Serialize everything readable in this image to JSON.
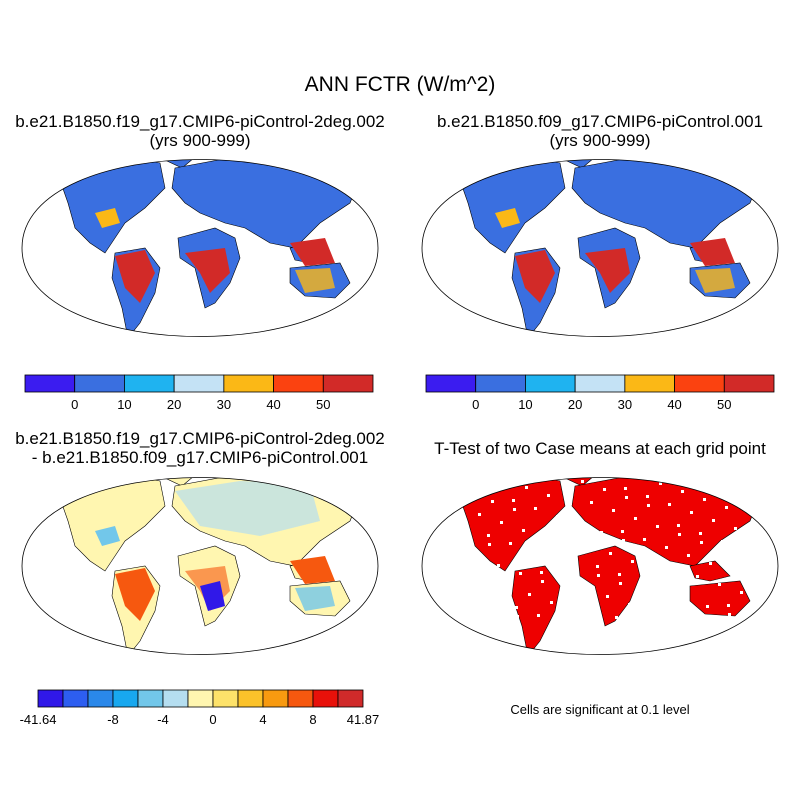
{
  "figure": {
    "main_title": "ANN FCTR (W/m^2)"
  },
  "panels": [
    {
      "title_line1": "b.e21.B1850.f19_g17.CMIP6-piControl-2deg.002",
      "title_line2": "(yrs 900-999)",
      "colorbar": {
        "colors": [
          "#3b1cf0",
          "#3a6fe0",
          "#1fb3f0",
          "#c4e2f5",
          "#fbb816",
          "#fb4210",
          "#d22a28"
        ],
        "tick_labels": [
          "0",
          "10",
          "20",
          "30",
          "40",
          "50"
        ]
      }
    },
    {
      "title_line1": "b.e21.B1850.f09_g17.CMIP6-piControl.001",
      "title_line2": "(yrs 900-999)",
      "colorbar": {
        "colors": [
          "#3b1cf0",
          "#3a6fe0",
          "#1fb3f0",
          "#c4e2f5",
          "#fbb816",
          "#fb4210",
          "#d22a28"
        ],
        "tick_labels": [
          "0",
          "10",
          "20",
          "30",
          "40",
          "50"
        ]
      }
    },
    {
      "title_line1": "b.e21.B1850.f19_g17.CMIP6-piControl-2deg.002",
      "title_line2": "- b.e21.B1850.f09_g17.CMIP6-piControl.001",
      "colorbar": {
        "colors": [
          "#3018e8",
          "#2d5ef0",
          "#2a88ea",
          "#18a8ef",
          "#72c7ea",
          "#b5def0",
          "#fff6b0",
          "#fde26a",
          "#fbc22a",
          "#f89a10",
          "#f6580f",
          "#e8110a",
          "#d02a2a"
        ],
        "tick_labels": [
          "-41.64",
          "-8",
          "-4",
          "0",
          "4",
          "8",
          "41.87"
        ]
      }
    },
    {
      "title_line1": "T-Test of two Case means at each grid point",
      "note": "Cells are significant at 0.1 level",
      "significant_color": "#ee0000"
    }
  ]
}
